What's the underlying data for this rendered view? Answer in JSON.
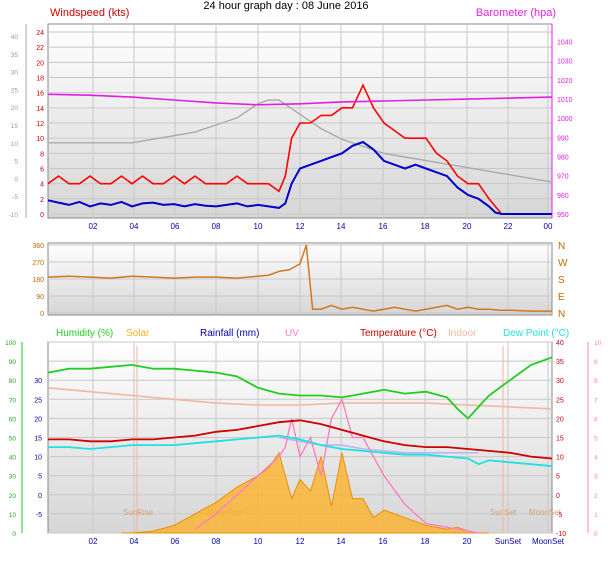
{
  "title": "24 hour graph day : 08 June 2016",
  "colors": {
    "panel_bg_top": "#ffffff",
    "panel_bg_bottom": "#dcdcdc",
    "grid": "#c8c8c8",
    "wind": "#ff0000",
    "wind_avg": "#0000cc",
    "baro": "#e020e0",
    "direction": "#d07820",
    "humidity": "#22cc22",
    "solar": "#ffb020",
    "rainfall": "#0000aa",
    "uv": "#ff80c0",
    "temperature": "#cc0000",
    "indoor": "#f0b8a0",
    "dewpoint": "#20e0e0",
    "apparent": "#b8b8f0"
  },
  "chart_data": [
    {
      "type": "line",
      "title": "Windspeed (kts)",
      "secondary_title": "Barometer (hpa)",
      "x_ticks": [
        "02",
        "04",
        "06",
        "08",
        "10",
        "12",
        "14",
        "16",
        "18",
        "20",
        "22",
        "00"
      ],
      "xlim": [
        0,
        24
      ],
      "ylim": [
        0,
        24
      ],
      "yticks_left": [
        0,
        2,
        4,
        6,
        8,
        10,
        12,
        14,
        16,
        18,
        20,
        22,
        24
      ],
      "yticks_right": [
        950,
        960,
        970,
        980,
        990,
        1000,
        1010,
        1020,
        1030,
        1040
      ],
      "yticks_left_outer": [
        -10,
        -5,
        0,
        5,
        10,
        15,
        20,
        25,
        30,
        35,
        40
      ],
      "y2lim": [
        950,
        1045
      ],
      "grid": true,
      "series": [
        {
          "name": "Windspeed (kts)",
          "role": "gust",
          "x": [
            0,
            0.5,
            1,
            1.5,
            2,
            2.5,
            3,
            3.5,
            4,
            4.5,
            5,
            5.5,
            6,
            6.5,
            7,
            7.5,
            8,
            8.5,
            9,
            9.5,
            10,
            10.5,
            11,
            11.3,
            11.6,
            12,
            12.5,
            13,
            13.5,
            14,
            14.5,
            15,
            15.5,
            16,
            16.5,
            17,
            17.5,
            18,
            18.5,
            19,
            19.5,
            20,
            20.5,
            21,
            21.3,
            21.6,
            22,
            22.5,
            23,
            23.5,
            24
          ],
          "values": [
            4,
            5,
            4,
            4,
            5,
            4,
            4,
            5,
            4,
            5,
            4,
            4,
            5,
            4,
            5,
            4,
            4,
            4,
            5,
            4,
            4,
            4,
            3,
            5,
            10,
            12,
            12,
            13,
            13,
            14,
            14,
            17,
            14,
            12,
            11,
            10,
            10,
            10,
            8,
            7,
            5,
            4,
            4,
            2,
            1,
            0,
            0,
            0,
            0,
            0,
            0
          ]
        },
        {
          "name": "Windspeed (kts)",
          "role": "average",
          "x": [
            0,
            0.5,
            1,
            1.5,
            2,
            2.5,
            3,
            3.5,
            4,
            4.5,
            5,
            5.5,
            6,
            6.5,
            7,
            7.5,
            8,
            8.5,
            9,
            9.5,
            10,
            10.5,
            11,
            11.3,
            11.6,
            12,
            12.5,
            13,
            13.5,
            14,
            14.5,
            15,
            15.5,
            16,
            16.5,
            17,
            17.5,
            18,
            18.5,
            19,
            19.5,
            20,
            20.5,
            21,
            21.3,
            21.6,
            22,
            22.5,
            23,
            23.5,
            24
          ],
          "values": [
            1.8,
            1.5,
            1.2,
            1.6,
            1.0,
            1.4,
            1.2,
            1.6,
            1.0,
            1.4,
            1.5,
            1.2,
            1.3,
            1.0,
            1.3,
            1.1,
            1.0,
            1.2,
            1.4,
            1.0,
            1.2,
            1.0,
            0.8,
            1.4,
            4.0,
            6.0,
            6.5,
            7.0,
            7.5,
            8.0,
            9.0,
            9.5,
            8.5,
            7.0,
            6.5,
            6.0,
            6.5,
            6.0,
            5.5,
            5.0,
            3.5,
            2.5,
            2.0,
            1.0,
            0.2,
            0,
            0,
            0,
            0,
            0,
            0
          ]
        },
        {
          "name": "Barometer (hpa)",
          "axis": "right",
          "x": [
            0,
            2,
            4,
            6,
            8,
            10,
            12,
            14,
            16,
            18,
            20,
            22,
            24
          ],
          "values": [
            1012.5,
            1012,
            1011,
            1009.5,
            1008,
            1007,
            1007.5,
            1008.5,
            1009,
            1009.5,
            1010,
            1010.5,
            1011
          ]
        },
        {
          "name": "",
          "role": "wind outer scale",
          "axis": "left_outer",
          "x": [
            0,
            1,
            2,
            3,
            4,
            5,
            6,
            7,
            8,
            9,
            9.5,
            10,
            10.5,
            11,
            11.5,
            12,
            13,
            14,
            15,
            16,
            17,
            18,
            19,
            20,
            21,
            22,
            23,
            24
          ],
          "values": [
            10,
            10,
            10,
            10,
            10,
            11,
            12,
            13,
            15,
            17,
            19,
            21,
            22,
            22,
            20,
            18,
            14,
            11,
            9,
            7,
            6,
            5,
            4,
            3,
            2,
            1,
            0,
            -1
          ]
        }
      ]
    },
    {
      "type": "line",
      "title": "",
      "x_ticks": [
        "02",
        "04",
        "06",
        "08",
        "10",
        "12",
        "14",
        "16",
        "18",
        "20",
        "22",
        "00"
      ],
      "xlim": [
        0,
        24
      ],
      "ylim": [
        0,
        360
      ],
      "yticks_left": [
        0,
        90,
        180,
        270,
        360
      ],
      "yticks_right": [
        "N",
        "E",
        "S",
        "W",
        "N"
      ],
      "series": [
        {
          "name": "",
          "x": [
            0,
            1,
            2,
            3,
            4,
            5,
            6,
            7,
            8,
            9,
            10,
            10.5,
            11,
            11.5,
            12,
            12.3,
            12.6,
            13,
            13.5,
            14,
            14.5,
            15,
            15.5,
            16,
            16.5,
            17,
            17.5,
            18,
            18.5,
            19,
            19.5,
            20,
            20.5,
            21,
            21.5,
            22,
            23,
            24
          ],
          "values": [
            190,
            195,
            190,
            185,
            195,
            190,
            185,
            190,
            190,
            185,
            195,
            200,
            220,
            230,
            260,
            360,
            20,
            20,
            40,
            20,
            30,
            20,
            10,
            20,
            30,
            20,
            10,
            20,
            30,
            40,
            20,
            30,
            20,
            20,
            15,
            15,
            10,
            10
          ]
        }
      ]
    },
    {
      "type": "line",
      "title": "",
      "legend": [
        "Humidity (%)",
        "Solar",
        "Rainfall (mm)",
        "UV",
        "Temperature (°C)",
        "Indoor",
        "Dew Point (°C)"
      ],
      "x_ticks": [
        "02",
        "04",
        "06",
        "08",
        "10",
        "12",
        "14",
        "16",
        "18",
        "20",
        "SunSet",
        "MoonSet"
      ],
      "annotations": [
        "SunRise",
        "MoonRise",
        "SunSet",
        "MoonSet"
      ],
      "xlim": [
        0,
        24
      ],
      "ylim": [
        -10,
        40
      ],
      "yticks_left_temp": [
        -5,
        0,
        5,
        10,
        15,
        20,
        25,
        30
      ],
      "yticks_left_humidity": [
        0,
        10,
        20,
        30,
        40,
        50,
        60,
        70,
        80,
        90,
        100
      ],
      "yticks_right": [
        -10,
        -5,
        0,
        5,
        10,
        15,
        20,
        25,
        30,
        35,
        40
      ],
      "yticks_right_uv": [
        0,
        1,
        2,
        3,
        4,
        5,
        6,
        7,
        8,
        9,
        10
      ],
      "series": [
        {
          "name": "Humidity (%)",
          "axis": "humidity",
          "x": [
            0,
            1,
            2,
            3,
            4,
            5,
            6,
            7,
            8,
            9,
            10,
            11,
            12,
            13,
            14,
            15,
            16,
            17,
            18,
            19,
            19.5,
            20,
            20.5,
            21,
            22,
            23,
            24
          ],
          "values": [
            84,
            86,
            86,
            87,
            88,
            86,
            86,
            85,
            84,
            82,
            76,
            73,
            72,
            72,
            71,
            73,
            75,
            73,
            74,
            71,
            65,
            60,
            66,
            72,
            80,
            88,
            92
          ]
        },
        {
          "name": "Solar",
          "x": [
            3.5,
            4,
            5,
            6,
            7,
            8,
            9,
            10,
            10.5,
            11,
            11.3,
            11.6,
            12,
            12.5,
            13,
            13.5,
            14,
            14.5,
            15,
            15.5,
            16,
            17,
            18,
            19,
            19.5,
            20,
            20.5,
            21
          ],
          "values": [
            -10,
            -10,
            -9.5,
            -8,
            -5,
            -2,
            2,
            5,
            7,
            11,
            5,
            -1,
            4,
            1,
            10,
            -3,
            11,
            -1,
            -1,
            -6,
            -4,
            -6,
            -8,
            -9,
            -8.5,
            -9.5,
            -10,
            -10
          ]
        },
        {
          "name": "UV",
          "axis": "uv",
          "x": [
            7,
            8,
            9,
            10,
            11,
            11.3,
            11.6,
            12,
            12.5,
            13,
            13.5,
            14,
            14.5,
            15,
            16,
            17,
            18,
            19,
            20,
            20.5
          ],
          "values": [
            0.2,
            1,
            2,
            3,
            4,
            4.5,
            6,
            4,
            5,
            3,
            6,
            7,
            5,
            5,
            3,
            1.5,
            0.5,
            0.3,
            0.1,
            0
          ]
        },
        {
          "name": "Temperature (°C)",
          "x": [
            0,
            1,
            2,
            3,
            4,
            5,
            6,
            7,
            8,
            9,
            10,
            11,
            12,
            13,
            14,
            15,
            16,
            17,
            18,
            19,
            20,
            21,
            22,
            23,
            24
          ],
          "values": [
            14.5,
            14.5,
            14,
            14,
            14.5,
            14.5,
            15,
            15.5,
            16.5,
            17,
            18,
            19,
            19.5,
            18.5,
            17,
            15.5,
            14,
            13,
            12.5,
            12.5,
            12,
            11.5,
            11,
            10,
            9.5
          ]
        },
        {
          "name": "Indoor",
          "x": [
            0,
            2,
            4,
            6,
            8,
            10,
            12,
            14,
            16,
            18,
            20,
            22,
            24
          ],
          "values": [
            28,
            27,
            26,
            25,
            24,
            23.5,
            23.5,
            24,
            24,
            24,
            23.5,
            23,
            22.5
          ]
        },
        {
          "name": "Dew Point (°C)",
          "x": [
            0,
            1,
            2,
            3,
            4,
            5,
            6,
            7,
            8,
            9,
            10,
            11,
            12,
            13,
            14,
            15,
            16,
            17,
            18,
            19,
            20,
            20.5,
            21,
            22,
            23,
            24
          ],
          "values": [
            12.5,
            12.5,
            12,
            12.5,
            13,
            13,
            13,
            13.5,
            14,
            14.5,
            15,
            15.5,
            14.5,
            13,
            12,
            11.5,
            11,
            10.5,
            10.5,
            10,
            9.5,
            8,
            9,
            8.5,
            8,
            7.5
          ]
        },
        {
          "name": "",
          "role": "apparent",
          "x": [
            11,
            12,
            13,
            14,
            15,
            16,
            17,
            18,
            19,
            20,
            20.5
          ],
          "values": [
            15,
            14,
            13,
            13,
            12,
            11.5,
            11,
            11,
            11,
            11,
            11
          ]
        }
      ]
    }
  ]
}
